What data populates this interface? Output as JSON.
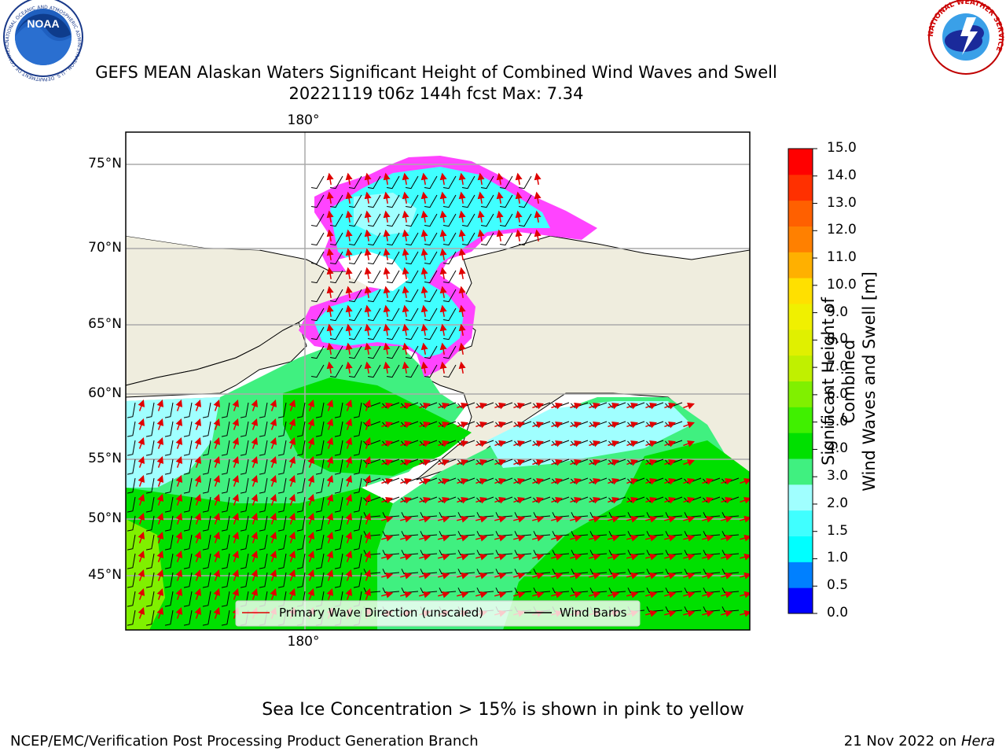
{
  "title_line1": "GEFS MEAN Alaskan Waters Significant Height of Combined Wind Waves and Swell",
  "title_line2": "20221119 t06z 144h fcst   Max: 7.34",
  "map": {
    "lat_labels": [
      "75°N",
      "70°N",
      "65°N",
      "60°N",
      "55°N",
      "50°N",
      "45°N"
    ],
    "lon_label_top": "180°",
    "lon_label_bottom": "180°",
    "legend": {
      "wave_direction_label": "Primary Wave Direction (unscaled)",
      "wind_barbs_label": "Wind Barbs",
      "wave_direction_color": "#e00000",
      "wind_barbs_color": "#000000"
    },
    "land_color": "#efedde",
    "ice_colors": [
      "#ff44ff",
      "#ffaadd",
      "#ffd050",
      "#ffffff"
    ]
  },
  "colorbar": {
    "title_line1": "Significant Height of Combined",
    "title_line2": "Wind Waves and Swell [m]",
    "ticks": [
      "15.0",
      "14.0",
      "13.0",
      "12.0",
      "11.0",
      "10.0",
      "9.0",
      "8.0",
      "7.0",
      "6.0",
      "5.0",
      "4.0",
      "3.0",
      "2.0",
      "1.5",
      "1.0",
      "0.5",
      "0.0"
    ],
    "colors": [
      "#0000ff",
      "#0080ff",
      "#00ffff",
      "#40ffff",
      "#a0ffff",
      "#40f080",
      "#00e000",
      "#40f000",
      "#80f000",
      "#c0f000",
      "#e0f000",
      "#f0f000",
      "#ffe000",
      "#ffb000",
      "#ff8000",
      "#ff6000",
      "#ff3000",
      "#ff0000"
    ]
  },
  "footer_note": "Sea Ice Concentration > 15% is shown in pink to yellow",
  "footer_left": "NCEP/EMC/Verification Post Processing Product Generation Branch",
  "footer_right_date": "21 Nov 2022 on",
  "footer_right_host": "Hera",
  "logos": {
    "noaa_text": "NOAA",
    "noaa_ring_text": "NATIONAL OCEANIC AND ATMOSPHERIC ADMINISTRATION · U.S. DEPARTMENT OF COMMERCE ·",
    "nws_ring_text": "NATIONAL WEATHER SERVICE"
  }
}
